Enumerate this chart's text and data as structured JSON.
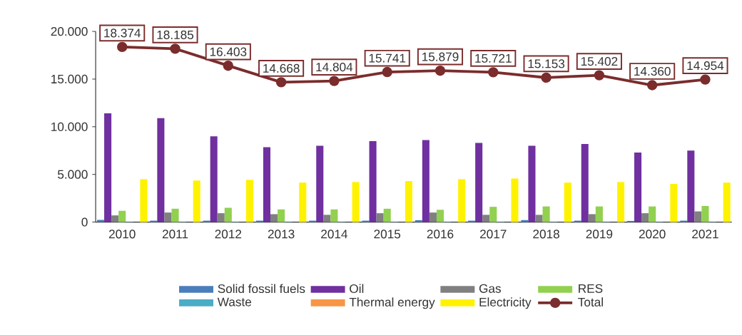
{
  "chart_data": {
    "type": "bar",
    "categories": [
      "2010",
      "2011",
      "2012",
      "2013",
      "2014",
      "2015",
      "2016",
      "2017",
      "2018",
      "2019",
      "2020",
      "2021"
    ],
    "series": [
      {
        "name": "Solid fossil fuels",
        "color": "#4a7ebb",
        "values": [
          230,
          150,
          150,
          150,
          150,
          150,
          200,
          150,
          210,
          150,
          120,
          150
        ]
      },
      {
        "name": "Oil",
        "color": "#7030a0",
        "values": [
          11400,
          10900,
          9000,
          7850,
          8000,
          8500,
          8600,
          8300,
          8000,
          8200,
          7300,
          7500
        ]
      },
      {
        "name": "Gas",
        "color": "#808080",
        "values": [
          700,
          1000,
          930,
          830,
          760,
          930,
          1000,
          760,
          760,
          830,
          930,
          1120
        ]
      },
      {
        "name": "RES",
        "color": "#92d050",
        "values": [
          1180,
          1400,
          1500,
          1330,
          1330,
          1400,
          1290,
          1600,
          1640,
          1640,
          1640,
          1690
        ]
      },
      {
        "name": "Waste",
        "color": "#4bacc6",
        "values": [
          30,
          30,
          30,
          30,
          30,
          30,
          30,
          30,
          30,
          30,
          30,
          30
        ]
      },
      {
        "name": "Thermal energy",
        "color": "#f79646",
        "values": [
          null,
          null,
          null,
          null,
          null,
          null,
          null,
          null,
          null,
          null,
          null,
          null
        ]
      },
      {
        "name": "Electricity",
        "color": "#fff200",
        "values": [
          4500,
          4360,
          4430,
          4140,
          4200,
          4300,
          4500,
          4570,
          4140,
          4200,
          4000,
          4140
        ]
      },
      {
        "name": "Total",
        "type": "line",
        "color": "#7b2c2c",
        "values": [
          18374,
          18185,
          16403,
          14668,
          14804,
          15741,
          15879,
          15721,
          15153,
          15402,
          14360,
          14954
        ],
        "value_labels": [
          "18.374",
          "18.185",
          "16.403",
          "14.668",
          "14.804",
          "15.741",
          "15.879",
          "15.721",
          "15.153",
          "15.402",
          "14.360",
          "14.954"
        ]
      }
    ],
    "ylim": [
      0,
      20000
    ],
    "yticks": [
      0,
      {
        "value": 5000,
        "label": "5.000"
      },
      {
        "value": 10000,
        "label": "10.000"
      },
      {
        "value": 15000,
        "label": "15.000"
      },
      {
        "value": 20000,
        "label": "20.000"
      }
    ],
    "marker": "circle",
    "legend": "bottom"
  }
}
